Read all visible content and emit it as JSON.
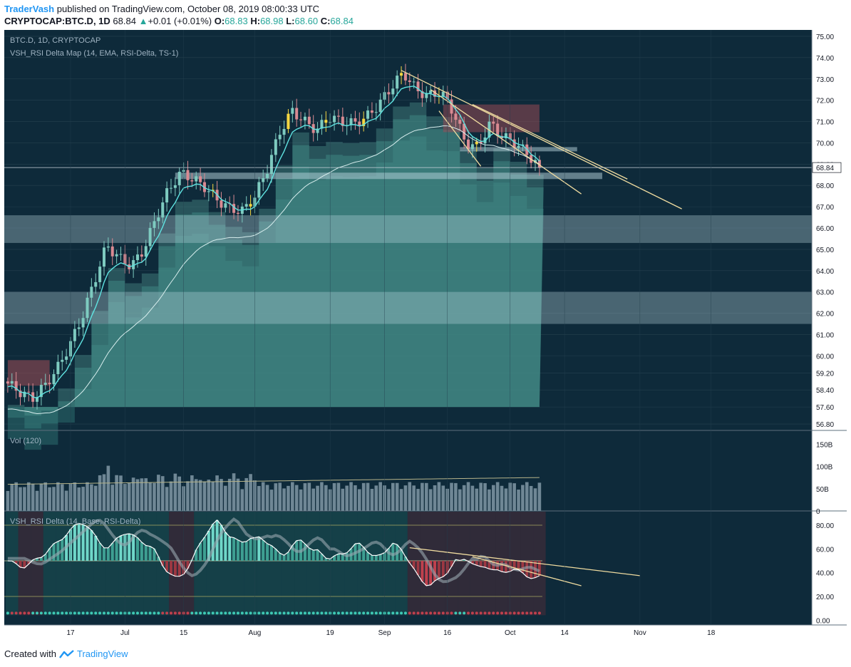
{
  "header": {
    "author": "TraderVash",
    "published_text": "published on TradingView.com, October 08, 2019 08:00:33 UTC",
    "symbol": "CRYPTOCAP:BTC.D, 1D",
    "last": "68.84",
    "change_arrow": "▲",
    "change": "+0.01 (+0.01%)",
    "o_label": "O:",
    "o": "68.83",
    "h_label": "H:",
    "h": "68.98",
    "l_label": "L:",
    "l": "68.60",
    "c_label": "C:",
    "c": "68.84"
  },
  "footer": {
    "created_with": "Created with",
    "brand": "TradingView"
  },
  "colors": {
    "background": "#0e2a3a",
    "grid": "#25404f",
    "bull": "#7ecbc0",
    "bear": "#d98a92",
    "yellow": "#f5d742",
    "cyan_line": "#5fe3e1",
    "trend": "#f0dca0",
    "price_label_bg": "#ffffff"
  },
  "chart_data": [
    {
      "type": "candlestick",
      "title": "BTC.D, 1D, CRYPTOCAP",
      "subtitle": "VSH_RSI Delta Map (14, EMA, RSI-Delta, TS-1)",
      "y_axis_ticks": [
        "75.00",
        "74.00",
        "73.00",
        "72.00",
        "71.00",
        "70.00",
        "69.00",
        "68.00",
        "67.00",
        "66.00",
        "65.00",
        "64.00",
        "63.00",
        "62.00",
        "61.00",
        "60.00",
        "59.20",
        "58.40",
        "57.60",
        "56.80"
      ],
      "ylim": [
        56.5,
        75.3
      ],
      "last_price_label": "68.84",
      "x_axis_ticks": [
        "17",
        "Jul",
        "15",
        "Aug",
        "19",
        "Sep",
        "16",
        "Oct",
        "14",
        "Nov",
        "18"
      ],
      "approx_close_path": [
        58.7,
        58.3,
        58.0,
        58.6,
        59.4,
        60.5,
        61.8,
        63.5,
        65.2,
        64.6,
        64.2,
        65.0,
        66.5,
        67.8,
        68.6,
        68.3,
        67.9,
        67.3,
        66.9,
        66.8,
        67.5,
        68.8,
        70.5,
        71.5,
        71.0,
        70.6,
        71.2,
        71.0,
        70.9,
        71.2,
        71.8,
        72.6,
        73.3,
        72.5,
        72.2,
        72.4,
        71.5,
        70.0,
        69.8,
        70.9,
        70.3,
        70.0,
        69.5,
        68.84
      ],
      "horizontal_bands": [
        [
          65.3,
          66.6
        ],
        [
          61.5,
          63.0
        ],
        [
          68.3,
          68.6
        ],
        [
          69.6,
          69.8
        ]
      ],
      "trendlines": [
        {
          "from": [
            "Sep 5",
            73.4
          ],
          "to": [
            "Nov 11",
            66.9
          ]
        },
        {
          "from": [
            "Sep 12",
            72.5
          ],
          "to": [
            "Oct 18",
            67.6
          ]
        },
        {
          "from": [
            "Sep 22",
            71.8
          ],
          "to": [
            "Oct 29",
            68.3
          ]
        },
        {
          "from": [
            "Sep 14",
            71.5
          ],
          "to": [
            "Sep 24",
            68.9
          ]
        }
      ]
    },
    {
      "type": "bar",
      "title": "Vol (120)",
      "y_axis_ticks": [
        "150B",
        "100B",
        "50B",
        "0"
      ],
      "ylim": [
        0,
        175
      ]
    },
    {
      "type": "bar",
      "title": "VSH_RSI Delta (14, Base, RSI-Delta)",
      "y_axis_ticks": [
        "80.00",
        "60.00",
        "40.00",
        "20.00",
        "0.00"
      ],
      "ylim": [
        -4,
        92
      ],
      "levels": [
        80,
        50,
        20
      ],
      "rsi_path": [
        50,
        48,
        46,
        45,
        47,
        50,
        53,
        56,
        60,
        64,
        68,
        72,
        76,
        80,
        83,
        80,
        74,
        68,
        63,
        61,
        64,
        70,
        74,
        73,
        70,
        68,
        65,
        62,
        58,
        50,
        43,
        38,
        35,
        38,
        43,
        50,
        60,
        69,
        75,
        80,
        84,
        78,
        71,
        68,
        66,
        67,
        69,
        68,
        70,
        67,
        63,
        58,
        55,
        57,
        62,
        66,
        68,
        63,
        58,
        58,
        55,
        52,
        53,
        55,
        57,
        60,
        63,
        64,
        61,
        55,
        53,
        55,
        60,
        65,
        62,
        58,
        52,
        44,
        36,
        31,
        30,
        32,
        34,
        38,
        44,
        50,
        49,
        53,
        49,
        45,
        44,
        46,
        43,
        41,
        40,
        42,
        43,
        41,
        39,
        37,
        35,
        36
      ],
      "trendlines": [
        {
          "from": [
            "Sep 7",
            61.0
          ],
          "to": [
            "Nov 1",
            37.5
          ]
        },
        {
          "from": [
            "Sep 22",
            53.5
          ],
          "to": [
            "Oct 18",
            29.0
          ]
        }
      ]
    }
  ]
}
